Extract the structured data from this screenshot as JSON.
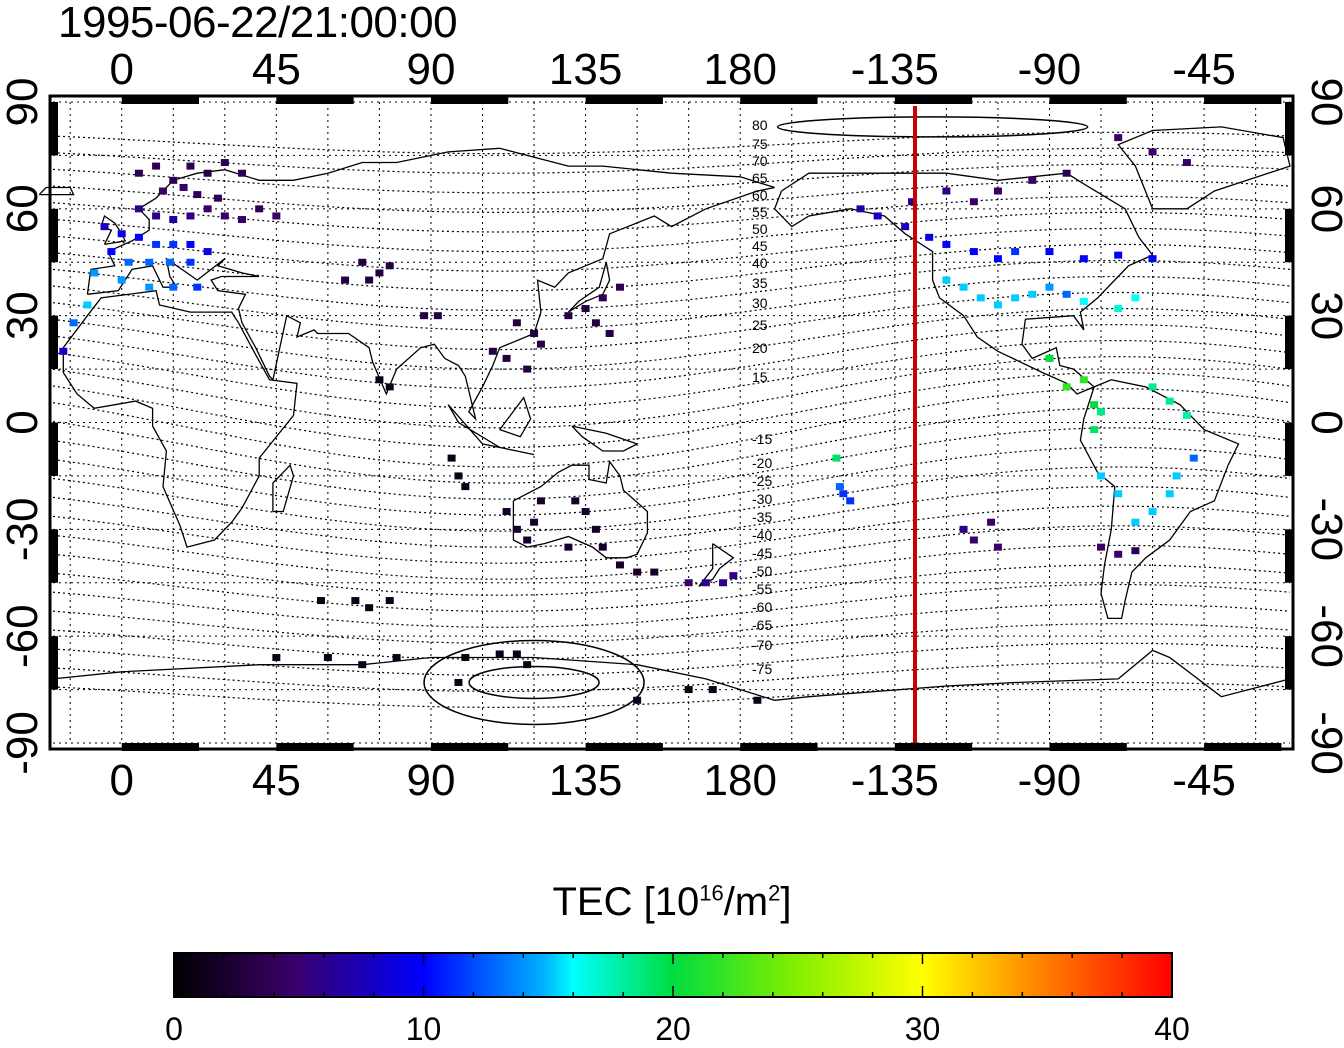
{
  "timestamp": "1995-06-22/21:00:00",
  "axes": {
    "top_lon_ticks": [
      "0",
      "45",
      "90",
      "135",
      "180",
      "-135",
      "-90",
      "-45"
    ],
    "bottom_lon_ticks": [
      "0",
      "45",
      "90",
      "135",
      "180",
      "-135",
      "-90",
      "-45"
    ],
    "left_lat_ticks": [
      "90",
      "60",
      "30",
      "0",
      "-30",
      "-60",
      "-90"
    ],
    "right_lat_ticks": [
      "90",
      "60",
      "30",
      "0",
      "-30",
      "-60",
      "-90"
    ]
  },
  "contour_labels": {
    "north": [
      "80",
      "75",
      "70",
      "65",
      "60",
      "55",
      "50",
      "45",
      "40",
      "35",
      "30",
      "25",
      "20",
      "15"
    ],
    "south": [
      "-15",
      "-20",
      "-25",
      "-30",
      "-35",
      "-40",
      "-45",
      "-50",
      "-55",
      "-60",
      "-65",
      "-70",
      "-75"
    ]
  },
  "colorbar": {
    "title_main": "TEC  [10",
    "title_exp": "16",
    "title_mid": "/m",
    "title_exp2": "2",
    "title_end": "]",
    "ticks": [
      "0",
      "10",
      "20",
      "30",
      "40"
    ],
    "min": 0,
    "max": 40
  },
  "terminator_line": {
    "lon_label": "-135",
    "color": "#cc0000"
  },
  "chart_data": {
    "type": "scatter",
    "title": "1995-06-22/21:00:00",
    "xlabel": "",
    "ylabel": "",
    "xlim_lon_shifted": [
      -20,
      340
    ],
    "ylim": [
      -90,
      90
    ],
    "colorbar_label": "TEC [10^16/m^2]",
    "points_lon_lat_tec": [
      [
        5,
        70,
        4
      ],
      [
        10,
        72,
        4
      ],
      [
        15,
        68,
        4
      ],
      [
        20,
        72,
        4
      ],
      [
        25,
        70,
        3
      ],
      [
        30,
        73,
        4
      ],
      [
        35,
        70,
        4
      ],
      [
        12,
        65,
        5
      ],
      [
        18,
        66,
        5
      ],
      [
        22,
        64,
        4
      ],
      [
        28,
        63,
        4
      ],
      [
        5,
        60,
        6
      ],
      [
        10,
        58,
        6
      ],
      [
        15,
        57,
        7
      ],
      [
        20,
        58,
        6
      ],
      [
        25,
        60,
        5
      ],
      [
        30,
        58,
        5
      ],
      [
        35,
        57,
        5
      ],
      [
        40,
        60,
        4
      ],
      [
        45,
        58,
        5
      ],
      [
        -5,
        55,
        8
      ],
      [
        0,
        53,
        9
      ],
      [
        5,
        52,
        10
      ],
      [
        10,
        50,
        11
      ],
      [
        15,
        50,
        11
      ],
      [
        20,
        50,
        10
      ],
      [
        25,
        48,
        9
      ],
      [
        -3,
        48,
        10
      ],
      [
        2,
        45,
        12
      ],
      [
        8,
        45,
        12
      ],
      [
        14,
        45,
        12
      ],
      [
        20,
        45,
        11
      ],
      [
        -8,
        42,
        13
      ],
      [
        0,
        40,
        13
      ],
      [
        8,
        38,
        13
      ],
      [
        15,
        38,
        12
      ],
      [
        22,
        38,
        11
      ],
      [
        -10,
        33,
        14
      ],
      [
        -14,
        28,
        12
      ],
      [
        -17,
        20,
        8
      ],
      [
        70,
        45,
        3
      ],
      [
        75,
        42,
        3
      ],
      [
        78,
        44,
        3
      ],
      [
        72,
        40,
        3
      ],
      [
        65,
        40,
        3
      ],
      [
        88,
        30,
        3
      ],
      [
        92,
        30,
        3
      ],
      [
        115,
        28,
        3
      ],
      [
        120,
        25,
        3
      ],
      [
        122,
        22,
        3
      ],
      [
        130,
        30,
        3
      ],
      [
        135,
        32,
        3
      ],
      [
        140,
        35,
        4
      ],
      [
        145,
        38,
        4
      ],
      [
        138,
        28,
        3
      ],
      [
        142,
        25,
        3
      ],
      [
        108,
        20,
        3
      ],
      [
        112,
        18,
        3
      ],
      [
        118,
        15,
        3
      ],
      [
        75,
        12,
        1
      ],
      [
        78,
        10,
        1
      ],
      [
        96,
        -10,
        1
      ],
      [
        98,
        -15,
        1
      ],
      [
        100,
        -18,
        1
      ],
      [
        112,
        -25,
        2
      ],
      [
        115,
        -30,
        2
      ],
      [
        118,
        -33,
        2
      ],
      [
        120,
        -28,
        2
      ],
      [
        122,
        -22,
        2
      ],
      [
        132,
        -22,
        2
      ],
      [
        135,
        -25,
        2
      ],
      [
        138,
        -30,
        2
      ],
      [
        140,
        -35,
        2
      ],
      [
        130,
        -35,
        2
      ],
      [
        145,
        -40,
        2
      ],
      [
        150,
        -42,
        2
      ],
      [
        155,
        -42,
        2
      ],
      [
        165,
        -45,
        5
      ],
      [
        170,
        -45,
        6
      ],
      [
        175,
        -45,
        6
      ],
      [
        178,
        -43,
        6
      ],
      [
        58,
        -50,
        1
      ],
      [
        68,
        -50,
        1
      ],
      [
        72,
        -52,
        1
      ],
      [
        78,
        -50,
        1
      ],
      [
        45,
        -66,
        1
      ],
      [
        60,
        -66,
        1
      ],
      [
        70,
        -68,
        1
      ],
      [
        80,
        -66,
        1
      ],
      [
        100,
        -66,
        1
      ],
      [
        110,
        -65,
        1
      ],
      [
        115,
        -65,
        1
      ],
      [
        118,
        -68,
        1
      ],
      [
        98,
        -73,
        1
      ],
      [
        150,
        -78,
        1
      ],
      [
        165,
        -75,
        1
      ],
      [
        172,
        -75,
        1
      ],
      [
        185,
        -78,
        1
      ],
      [
        208,
        -10,
        19
      ],
      [
        209,
        -18,
        12
      ],
      [
        212,
        -22,
        11
      ],
      [
        210,
        -20,
        11
      ],
      [
        230,
        62,
        6
      ],
      [
        240,
        65,
        6
      ],
      [
        248,
        62,
        5
      ],
      [
        255,
        65,
        5
      ],
      [
        265,
        68,
        5
      ],
      [
        275,
        70,
        4
      ],
      [
        290,
        80,
        5
      ],
      [
        300,
        76,
        5
      ],
      [
        310,
        73,
        5
      ],
      [
        215,
        60,
        7
      ],
      [
        220,
        58,
        8
      ],
      [
        228,
        55,
        8
      ],
      [
        235,
        52,
        9
      ],
      [
        240,
        50,
        10
      ],
      [
        248,
        48,
        10
      ],
      [
        255,
        46,
        10
      ],
      [
        260,
        48,
        11
      ],
      [
        270,
        48,
        10
      ],
      [
        280,
        46,
        10
      ],
      [
        290,
        47,
        10
      ],
      [
        300,
        46,
        10
      ],
      [
        240,
        40,
        14
      ],
      [
        245,
        38,
        14
      ],
      [
        250,
        35,
        14
      ],
      [
        255,
        33,
        14
      ],
      [
        260,
        35,
        14
      ],
      [
        265,
        36,
        14
      ],
      [
        270,
        38,
        13
      ],
      [
        275,
        36,
        12
      ],
      [
        280,
        34,
        15
      ],
      [
        290,
        32,
        16
      ],
      [
        295,
        35,
        15
      ],
      [
        270,
        18,
        20
      ],
      [
        275,
        10,
        22
      ],
      [
        280,
        12,
        22
      ],
      [
        283,
        5,
        20
      ],
      [
        285,
        3,
        18
      ],
      [
        283,
        -2,
        19
      ],
      [
        300,
        10,
        18
      ],
      [
        305,
        6,
        18
      ],
      [
        310,
        2,
        17
      ],
      [
        285,
        -15,
        14
      ],
      [
        290,
        -20,
        14
      ],
      [
        295,
        -28,
        14
      ],
      [
        300,
        -25,
        14
      ],
      [
        305,
        -20,
        14
      ],
      [
        307,
        -15,
        14
      ],
      [
        312,
        -10,
        12
      ],
      [
        245,
        -30,
        6
      ],
      [
        248,
        -33,
        5
      ],
      [
        253,
        -28,
        5
      ],
      [
        255,
        -35,
        5
      ],
      [
        285,
        -35,
        5
      ],
      [
        290,
        -37,
        5
      ],
      [
        295,
        -36,
        4
      ]
    ]
  }
}
